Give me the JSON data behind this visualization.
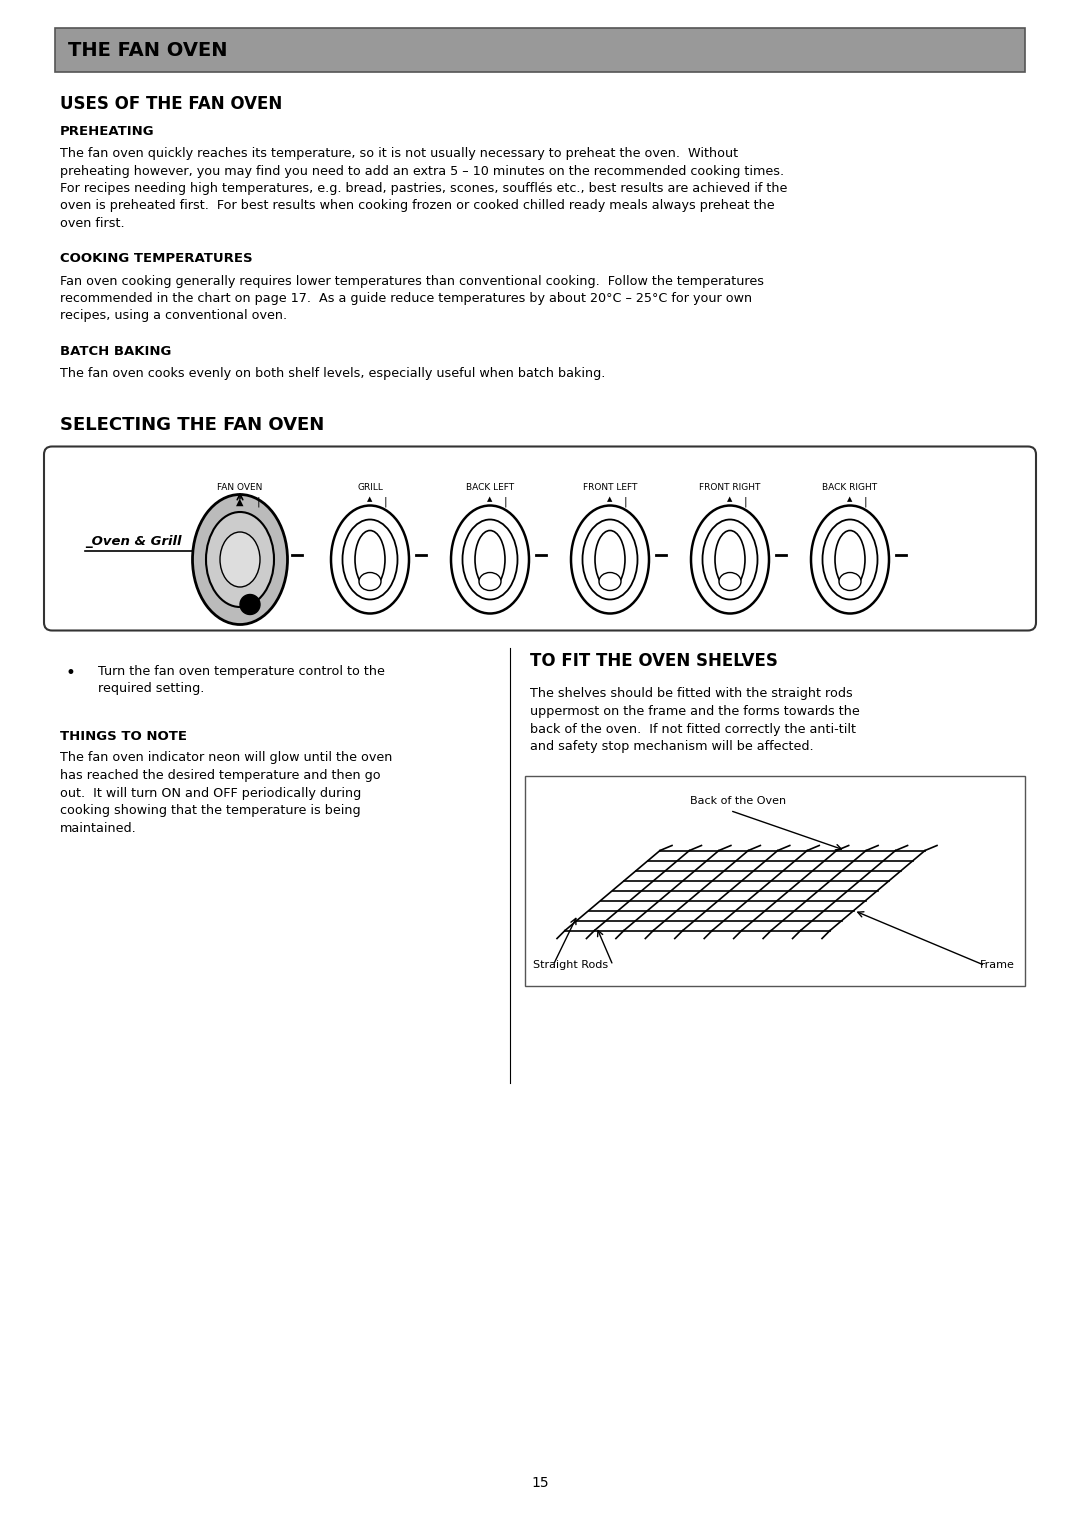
{
  "page_bg": "#ffffff",
  "header_bg": "#999999",
  "header_text": "THE FAN OVEN",
  "header_text_color": "#000000",
  "section1_title": "USES OF THE FAN OVEN",
  "sub1_title": "PREHEATING",
  "sub1_body_lines": [
    "The fan oven quickly reaches its temperature, so it is not usually necessary to preheat the oven.  Without",
    "preheating however, you may find you need to add an extra 5 – 10 minutes on the recommended cooking times.",
    "For recipes needing high temperatures, e.g. bread, pastries, scones, soufflés etc., best results are achieved if the",
    "oven is preheated first.  For best results when cooking frozen or cooked chilled ready meals always preheat the",
    "oven first."
  ],
  "sub2_title": "COOKING TEMPERATURES",
  "sub2_body_lines": [
    "Fan oven cooking generally requires lower temperatures than conventional cooking.  Follow the temperatures",
    "recommended in the chart on page 17.  As a guide reduce temperatures by about 20°C – 25°C for your own",
    "recipes, using a conventional oven."
  ],
  "sub3_title": "BATCH BAKING",
  "sub3_body_lines": [
    "The fan oven cooks evenly on both shelf levels, especially useful when batch baking."
  ],
  "section2_title": "SELECTING THE FAN OVEN",
  "knob_labels": [
    "FAN OVEN",
    "GRILL",
    "BACK LEFT",
    "FRONT LEFT",
    "FRONT RIGHT",
    "BACK RIGHT"
  ],
  "oven_grill_text": "Oven & Grill",
  "bullet_text_lines": [
    "Turn the fan oven temperature control to the",
    "required setting."
  ],
  "things_note_title": "THINGS TO NOTE",
  "things_note_body_lines": [
    "The fan oven indicator neon will glow until the oven",
    "has reached the desired temperature and then go",
    "out.  It will turn ON and OFF periodically during",
    "cooking showing that the temperature is being",
    "maintained."
  ],
  "section3_title": "TO FIT THE OVEN SHELVES",
  "section3_body_lines": [
    "The shelves should be fitted with the straight rods",
    "uppermost on the frame and the forms towards the",
    "back of the oven.  If not fitted correctly the anti-tilt",
    "and safety stop mechanism will be affected."
  ],
  "shelf_label1": "Back of the Oven",
  "shelf_label2": "Straight Rods",
  "shelf_label3": "Frame",
  "page_number": "15"
}
